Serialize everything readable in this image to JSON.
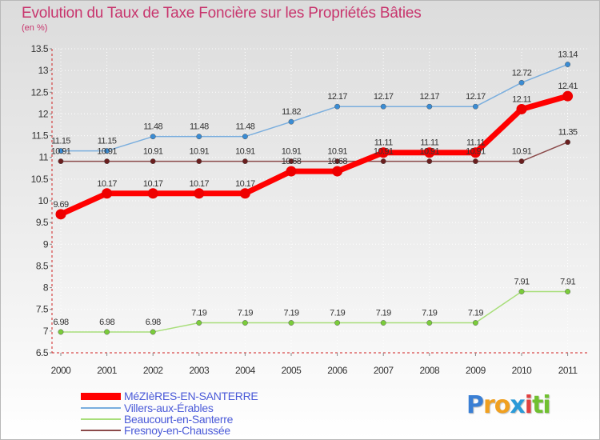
{
  "chart_data": {
    "type": "line",
    "title": "Evolution du Taux de Taxe Foncière sur les Propriétés Bâties",
    "ylabel": "(en %)",
    "xlabel": "",
    "ylim": [
      6.5,
      13.5
    ],
    "yticks": [
      6.5,
      7,
      7.5,
      8,
      8.5,
      9,
      9.5,
      10,
      10.5,
      11,
      11.5,
      12,
      12.5,
      13,
      13.5
    ],
    "categories": [
      "2000",
      "2001",
      "2002",
      "2003",
      "2004",
      "2005",
      "2006",
      "2007",
      "2008",
      "2009",
      "2010",
      "2011"
    ],
    "series": [
      {
        "name": "MéZIèRES-EN-SANTERRE",
        "color": "#ff0000",
        "marker": "#ee0000",
        "width": 7,
        "values": [
          9.69,
          10.17,
          10.17,
          10.17,
          10.17,
          10.68,
          10.68,
          11.11,
          11.11,
          11.11,
          12.11,
          12.41
        ],
        "labels": [
          "9.69",
          "10.17",
          "10.17",
          "10.17",
          "10.17",
          "10.68",
          "10.68",
          "11.11",
          "11.11",
          "11.11",
          "12.11",
          "12.41"
        ]
      },
      {
        "name": "Villers-aux-Érables",
        "color": "#7aaede",
        "marker": "#3a8cd4",
        "width": 1.5,
        "values": [
          11.15,
          11.15,
          11.48,
          11.48,
          11.48,
          11.82,
          12.17,
          12.17,
          12.17,
          12.17,
          12.72,
          13.14
        ],
        "labels": [
          "11.15",
          "11.15",
          "11.48",
          "11.48",
          "11.48",
          "11.82",
          "12.17",
          "12.17",
          "12.17",
          "12.17",
          "12.72",
          "13.14"
        ]
      },
      {
        "name": "Beaucourt-en-Santerre",
        "color": "#a8de7a",
        "marker": "#7acc3a",
        "width": 1.5,
        "values": [
          6.98,
          6.98,
          6.98,
          7.19,
          7.19,
          7.19,
          7.19,
          7.19,
          7.19,
          7.19,
          7.91,
          7.91
        ],
        "labels": [
          "6.98",
          "6.98",
          "6.98",
          "7.19",
          "7.19",
          "7.19",
          "7.19",
          "7.19",
          "7.19",
          "7.19",
          "7.91",
          "7.91"
        ]
      },
      {
        "name": "Fresnoy-en-Chaussée",
        "color": "#8b4a4a",
        "marker": "#6a1e1e",
        "width": 1.5,
        "values": [
          10.91,
          10.91,
          10.91,
          10.91,
          10.91,
          10.91,
          10.91,
          10.91,
          10.91,
          10.91,
          10.91,
          11.35
        ],
        "labels": [
          "10.91",
          "10.91",
          "10.91",
          "10.91",
          "10.91",
          "10.91",
          "10.91",
          "10.91",
          "10.91",
          "10.91",
          "10.91",
          "11.35"
        ]
      }
    ]
  },
  "branding": {
    "letters": [
      "P",
      "r",
      "o",
      "x",
      "i",
      "t",
      "i"
    ],
    "colors": [
      "#3a7fd4",
      "#f0a020",
      "#f0a020",
      "#2a9ad8",
      "#e04040",
      "#70c030",
      "#70c030"
    ]
  }
}
